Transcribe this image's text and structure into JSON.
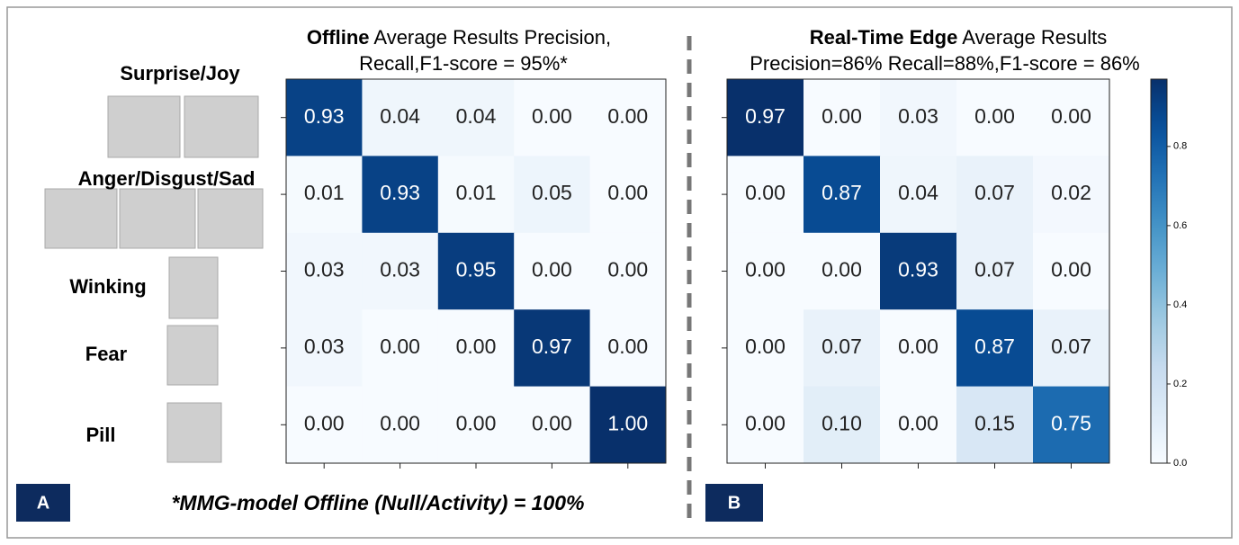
{
  "chart_data": [
    {
      "type": "heatmap",
      "title_bold": "Offline",
      "title": "Average Results Precision,",
      "subtitle": "Recall,F1-score = 95%*",
      "categories": [
        "Surprise/Joy",
        "Anger/Disgust/Sad",
        "Winking",
        "Fear",
        "Pill"
      ],
      "values": [
        [
          0.93,
          0.04,
          0.04,
          0,
          0
        ],
        [
          0.01,
          0.93,
          0.01,
          0.05,
          0
        ],
        [
          0.03,
          0.03,
          0.95,
          0,
          0
        ],
        [
          0.03,
          0,
          0,
          0.97,
          0
        ],
        [
          0,
          0,
          0,
          0,
          1
        ]
      ],
      "value_labels": [
        [
          "0.93",
          "0.04",
          "0.04",
          "0.00",
          "0.00"
        ],
        [
          "0.01",
          "0.93",
          "0.01",
          "0.05",
          "0.00"
        ],
        [
          "0.03",
          "0.03",
          "0.95",
          "0.00",
          "0.00"
        ],
        [
          "0.03",
          "0.00",
          "0.00",
          "0.97",
          "0.00"
        ],
        [
          "0.00",
          "0.00",
          "0.00",
          "0.00",
          "1.00"
        ]
      ],
      "zlim": [
        0,
        1
      ]
    },
    {
      "type": "heatmap",
      "title_bold": "Real-Time Edge",
      "title": "Average Results",
      "subtitle": "Precision=86% Recall=88%,F1-score = 86%",
      "values": [
        [
          0.97,
          0,
          0.03,
          0,
          0
        ],
        [
          0,
          0.87,
          0.04,
          0.07,
          0.02
        ],
        [
          0,
          0,
          0.93,
          0.07,
          0
        ],
        [
          0,
          0.07,
          0,
          0.87,
          0.07
        ],
        [
          0,
          0.1,
          0,
          0.15,
          0.75
        ]
      ],
      "value_labels": [
        [
          "0.97",
          "0.00",
          "0.03",
          "0.00",
          "0.00"
        ],
        [
          "0.00",
          "0.87",
          "0.04",
          "0.07",
          "0.02"
        ],
        [
          "0.00",
          "0.00",
          "0.93",
          "0.07",
          "0.00"
        ],
        [
          "0.00",
          "0.07",
          "0.00",
          "0.87",
          "0.07"
        ],
        [
          "0.00",
          "0.10",
          "0.00",
          "0.15",
          "0.75"
        ]
      ],
      "zlim": [
        0,
        0.97
      ],
      "zticks": [
        {
          "value": 0,
          "label": "0.0"
        },
        0.2,
        0.4,
        0.6,
        0.8
      ]
    }
  ],
  "panels": [
    "A",
    "B"
  ],
  "footnote": "*MMG-model  Offline (Null/Activity) = 100%"
}
